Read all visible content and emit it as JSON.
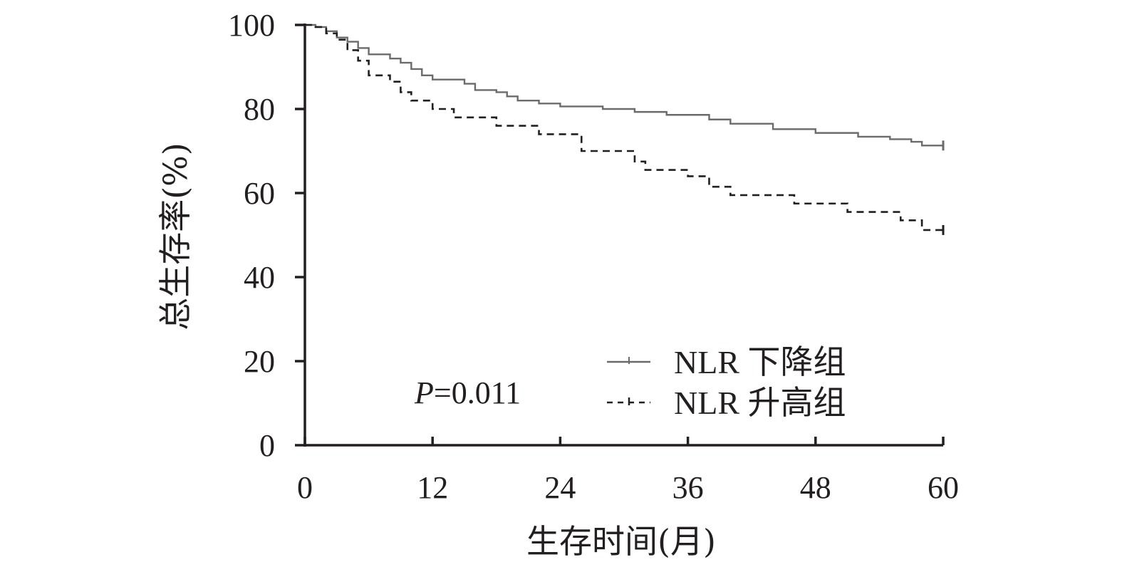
{
  "chart_data": {
    "type": "line",
    "xlabel": "生存时间(月)",
    "ylabel": "总生存率(%)",
    "xlim": [
      0,
      60
    ],
    "ylim": [
      0,
      100
    ],
    "xticks": [
      0,
      12,
      24,
      36,
      48,
      60
    ],
    "yticks": [
      0,
      20,
      40,
      60,
      80,
      100
    ],
    "grid": false,
    "legend_position": "bottom-right",
    "annotation": {
      "italic": "P",
      "rest": "=0.011"
    },
    "series": [
      {
        "name": "NLR 下降组",
        "line_style": "solid",
        "color": "#6b6b6b",
        "x": [
          0,
          1,
          2,
          3,
          4,
          5,
          6,
          8,
          9,
          10,
          11,
          12,
          15,
          16,
          18,
          19,
          20,
          22,
          24,
          28,
          31,
          34,
          38,
          40,
          44,
          48,
          52,
          55,
          57,
          58,
          60
        ],
        "y": [
          100,
          99.5,
          98.5,
          97,
          96,
          94.5,
          93,
          92,
          91,
          89.5,
          88,
          87,
          86,
          84.5,
          84,
          83,
          82,
          81.3,
          80.6,
          80,
          79.3,
          78.6,
          77.5,
          76.5,
          75.2,
          74.3,
          73.4,
          72.8,
          72.2,
          71.3,
          71.3
        ]
      },
      {
        "name": "NLR 升高组",
        "line_style": "dashed",
        "color": "#231f20",
        "x": [
          0,
          1,
          2,
          3,
          4,
          5,
          6,
          8,
          9,
          10,
          12,
          14,
          18,
          22,
          26,
          31,
          32,
          36,
          38,
          40,
          46,
          51,
          56,
          58,
          60
        ],
        "y": [
          100,
          99.5,
          98,
          96.5,
          94,
          91.5,
          88,
          86.5,
          84,
          82,
          80,
          78,
          76,
          74,
          70,
          67.5,
          65.5,
          64,
          61.5,
          59.5,
          57.5,
          55.5,
          53.5,
          51.2,
          51.2
        ]
      }
    ]
  }
}
